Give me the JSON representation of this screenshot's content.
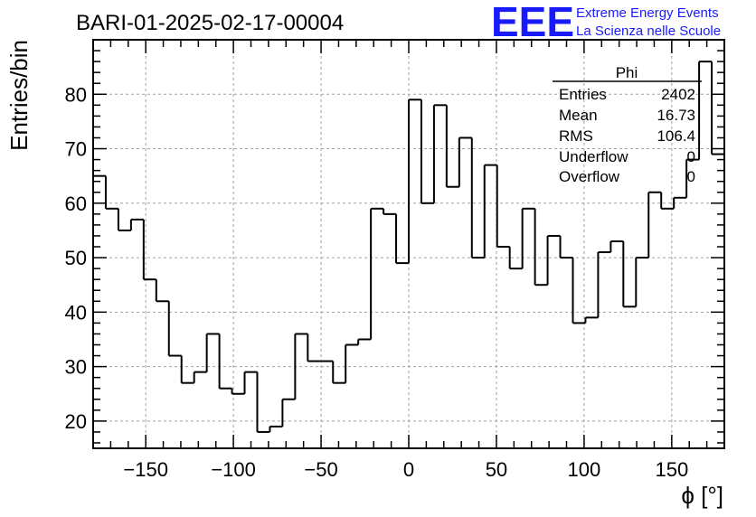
{
  "chart_data": {
    "type": "histogram",
    "title": "BARI-01-2025-02-17-00004",
    "xlabel": "ϕ [°]",
    "ylabel": "Entries/bin",
    "xlim": [
      -180,
      180
    ],
    "ylim": [
      15,
      90
    ],
    "grid": true,
    "bin_width": 7.2,
    "bin_edges_start": -180,
    "values": [
      65,
      59,
      55,
      57,
      46,
      42,
      32,
      27,
      29,
      36,
      26,
      25,
      29,
      18,
      19,
      24,
      36,
      31,
      31,
      27,
      34,
      35,
      59,
      58,
      49,
      79,
      60,
      78,
      63,
      72,
      50,
      67,
      52,
      48,
      59,
      45,
      54,
      50,
      38,
      39,
      51,
      53,
      41,
      50,
      62,
      59,
      61,
      68,
      86,
      69
    ],
    "x_ticks": [
      -150,
      -100,
      -50,
      0,
      50,
      100,
      150
    ],
    "x_tick_labels": [
      "−150",
      "−100",
      "−50",
      "0",
      "50",
      "100",
      "150"
    ],
    "y_ticks": [
      20,
      30,
      40,
      50,
      60,
      70,
      80
    ],
    "y_tick_labels": [
      "20",
      "30",
      "40",
      "50",
      "60",
      "70",
      "80"
    ]
  },
  "stats_box": {
    "title": "Phi",
    "rows": [
      {
        "label": "Entries",
        "value": "2402"
      },
      {
        "label": "Mean",
        "value": "16.73"
      },
      {
        "label": "RMS",
        "value": "106.4"
      },
      {
        "label": "Underflow",
        "value": "0"
      },
      {
        "label": "Overflow",
        "value": "0"
      }
    ]
  },
  "logo": {
    "text": "EEE",
    "line1": "Extreme Energy Events",
    "line2": "La Scienza nelle Scuole",
    "color": "#1a1aff"
  },
  "colors": {
    "line": "#000000",
    "grid": "#a0a0a0"
  }
}
